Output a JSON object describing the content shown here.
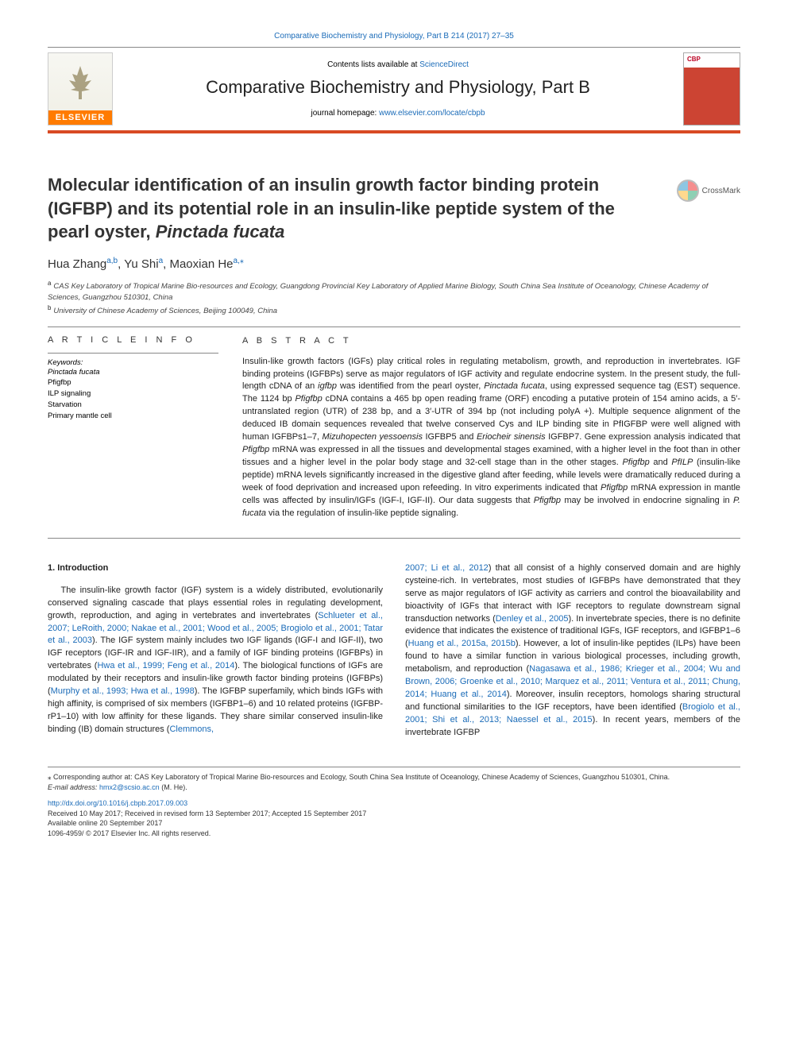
{
  "running_head": "Comparative Biochemistry and Physiology, Part B 214 (2017) 27–35",
  "banner": {
    "contents_prefix": "Contents lists available at ",
    "contents_link": "ScienceDirect",
    "journal_name": "Comparative Biochemistry and Physiology, Part B",
    "homepage_prefix": "journal homepage: ",
    "homepage_url": "www.elsevier.com/locate/cbpb",
    "publisher_label": "ELSEVIER",
    "cover_label": "CBP"
  },
  "crossmark_label": "CrossMark",
  "title": "Molecular identification of an insulin growth factor binding protein (IGFBP) and its potential role in an insulin-like peptide system of the pearl oyster, Pinctada fucata",
  "authors_html": "Hua Zhang<sup>a,b</sup>, Yu Shi<sup>a</sup>, Maoxian He<sup>a,</sup><sup>⁎</sup>",
  "affiliations": [
    {
      "key": "a",
      "text": "CAS Key Laboratory of Tropical Marine Bio-resources and Ecology, Guangdong Provincial Key Laboratory of Applied Marine Biology, South China Sea Institute of Oceanology, Chinese Academy of Sciences, Guangzhou 510301, China"
    },
    {
      "key": "b",
      "text": "University of Chinese Academy of Sciences, Beijing 100049, China"
    }
  ],
  "article_info": {
    "heading": "A R T I C L E  I N F O",
    "keywords_label": "Keywords:",
    "keywords": [
      "Pinctada fucata",
      "Pfigfbp",
      "ILP signaling",
      "Starvation",
      "Primary mantle cell"
    ]
  },
  "abstract": {
    "heading": "A B S T R A C T",
    "text": "Insulin-like growth factors (IGFs) play critical roles in regulating metabolism, growth, and reproduction in invertebrates. IGF binding proteins (IGFBPs) serve as major regulators of IGF activity and regulate endocrine system. In the present study, the full-length cDNA of an igfbp was identified from the pearl oyster, Pinctada fucata, using expressed sequence tag (EST) sequence. The 1124 bp Pfigfbp cDNA contains a 465 bp open reading frame (ORF) encoding a putative protein of 154 amino acids, a 5′-untranslated region (UTR) of 238 bp, and a 3′-UTR of 394 bp (not including polyA +). Multiple sequence alignment of the deduced IB domain sequences revealed that twelve conserved Cys and ILP binding site in PfIGFBP were well aligned with human IGFBPs1–7, Mizuhopecten yessoensis IGFBP5 and Eriocheir sinensis IGFBP7. Gene expression analysis indicated that Pfigfbp mRNA was expressed in all the tissues and developmental stages examined, with a higher level in the foot than in other tissues and a higher level in the polar body stage and 32-cell stage than in the other stages. Pfigfbp and PfILP (insulin-like peptide) mRNA levels significantly increased in the digestive gland after feeding, while levels were dramatically reduced during a week of food deprivation and increased upon refeeding. In vitro experiments indicated that Pfigfbp mRNA expression in mantle cells was affected by insulin/IGFs (IGF-I, IGF-II). Our data suggests that Pfigfbp may be involved in endocrine signaling in P. fucata via the regulation of insulin-like peptide signaling."
  },
  "intro": {
    "heading": "1. Introduction",
    "col1_pre": "The insulin-like growth factor (IGF) system is a widely distributed, evolutionarily conserved signaling cascade that plays essential roles in regulating development, growth, reproduction, and aging in vertebrates and invertebrates (",
    "cite1": "Schlueter et al., 2007; LeRoith, 2000; Nakae et al., 2001; Wood et al., 2005; Brogiolo et al., 2001; Tatar et al., 2003",
    "col1_mid1": "). The IGF system mainly includes two IGF ligands (IGF-I and IGF-II), two IGF receptors (IGF-IR and IGF-IIR), and a family of IGF binding proteins (IGFBPs) in vertebrates (",
    "cite2": "Hwa et al., 1999; Feng et al., 2014",
    "col1_mid2": "). The biological functions of IGFs are modulated by their receptors and insulin-like growth factor binding proteins (IGFBPs) (",
    "cite3": "Murphy et al., 1993; Hwa et al., 1998",
    "col1_mid3": "). The IGFBP superfamily, which binds IGFs with high affinity, is comprised of six members (IGFBP1–6) and 10 related proteins (IGFBP-rP1–10) with low affinity for these ligands. They share similar conserved insulin-like binding (IB) domain structures (",
    "cite4": "Clemmons,",
    "col2_cite_cont": "2007; Li et al., 2012",
    "col2_a": ") that all consist of a highly conserved domain and are highly cysteine-rich. In vertebrates, most studies of IGFBPs have demonstrated that they serve as major regulators of IGF activity as carriers and control the bioavailability and bioactivity of IGFs that interact with IGF receptors to regulate downstream signal transduction networks (",
    "cite5": "Denley et al., 2005",
    "col2_b": "). In invertebrate species, there is no definite evidence that indicates the existence of traditional IGFs, IGF receptors, and IGFBP1–6 (",
    "cite6": "Huang et al., 2015a, 2015b",
    "col2_c": "). However, a lot of insulin-like peptides (ILPs) have been found to have a similar function in various biological processes, including growth, metabolism, and reproduction (",
    "cite7": "Nagasawa et al., 1986; Krieger et al., 2004; Wu and Brown, 2006; Groenke et al., 2010; Marquez et al., 2011; Ventura et al., 2011; Chung, 2014; Huang et al., 2014",
    "col2_d": "). Moreover, insulin receptors, homologs sharing structural and functional similarities to the IGF receptors, have been identified (",
    "cite8": "Brogiolo et al., 2001; Shi et al., 2013; Naessel et al., 2015",
    "col2_e": "). In recent years, members of the invertebrate IGFBP"
  },
  "footnotes": {
    "corr": "⁎ Corresponding author at: CAS Key Laboratory of Tropical Marine Bio-resources and Ecology, South China Sea Institute of Oceanology, Chinese Academy of Sciences, Guangzhou 510301, China.",
    "email_label": "E-mail address: ",
    "email": "hmx2@scsio.ac.cn",
    "email_suffix": " (M. He).",
    "doi": "http://dx.doi.org/10.1016/j.cbpb.2017.09.003",
    "received": "Received 10 May 2017; Received in revised form 13 September 2017; Accepted 15 September 2017",
    "online": "Available online 20 September 2017",
    "copyright": "1096-4959/ © 2017 Elsevier Inc. All rights reserved."
  },
  "colors": {
    "link": "#1a6bb8",
    "rule": "#d84a24",
    "elsevier_orange": "#ff7b00"
  }
}
